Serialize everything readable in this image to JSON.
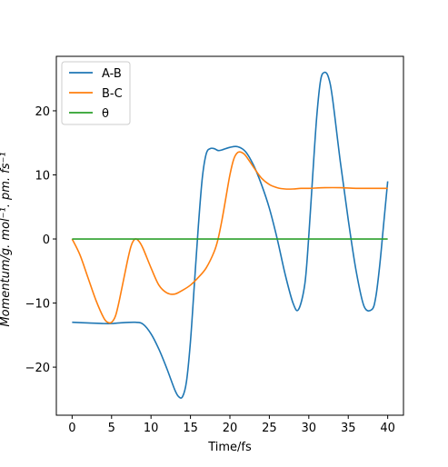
{
  "chart_data": {
    "type": "line",
    "title": "",
    "xlabel": "Time/fs",
    "ylabel": "Momentum/g. mol⁻¹. pm. fs⁻¹",
    "xlim": [
      -2,
      42
    ],
    "ylim": [
      -27.5,
      28.5
    ],
    "xticks": [
      0,
      5,
      10,
      15,
      20,
      25,
      30,
      35,
      40
    ],
    "yticks": [
      -20,
      -10,
      0,
      10,
      20
    ],
    "legend_position": "top-left",
    "grid": false,
    "series": [
      {
        "name": "A-B",
        "color": "#1f77b4",
        "x": [
          0,
          2,
          4,
          5,
          6,
          8,
          9,
          10,
          11,
          12,
          13,
          13.5,
          14,
          14.5,
          15,
          15.5,
          16,
          16.5,
          17,
          17.5,
          18,
          18.5,
          19,
          20,
          21,
          22,
          23,
          24,
          25,
          26,
          27,
          28,
          28.7,
          29.5,
          30,
          30.5,
          31,
          31.5,
          32,
          32.5,
          33,
          34,
          35,
          36,
          37,
          38,
          38.5,
          39,
          39.5,
          40
        ],
        "y": [
          -13,
          -13.1,
          -13.2,
          -13.2,
          -13.1,
          -13.0,
          -13.3,
          -14.8,
          -17.2,
          -20.2,
          -23.5,
          -24.6,
          -24.6,
          -22.2,
          -16.0,
          -7.0,
          2.0,
          9.5,
          13.3,
          14.1,
          14.1,
          13.8,
          13.9,
          14.3,
          14.4,
          13.6,
          11.5,
          8.5,
          4.8,
          0.0,
          -5.5,
          -10.0,
          -11.0,
          -7.0,
          0.5,
          10.0,
          19.0,
          24.8,
          26.0,
          25.2,
          22.0,
          12.0,
          3.0,
          -5.0,
          -10.5,
          -11.0,
          -9.0,
          -4.0,
          2.5,
          9.0
        ]
      },
      {
        "name": "B-C",
        "color": "#ff7f0e",
        "x": [
          0,
          1,
          2,
          3,
          4,
          4.5,
          5,
          5.5,
          6,
          7,
          7.5,
          8,
          8.5,
          9,
          10,
          11,
          12,
          13,
          14,
          15,
          16,
          17,
          18,
          18.5,
          19,
          19.5,
          20,
          20.5,
          21,
          21.5,
          22,
          23,
          24,
          25,
          26,
          27,
          28,
          29,
          30,
          32,
          34,
          36,
          38,
          40
        ],
        "y": [
          0,
          -2.5,
          -6.0,
          -9.5,
          -12.3,
          -13.0,
          -13.0,
          -12.0,
          -9.5,
          -3.5,
          -1.0,
          0.0,
          -0.4,
          -1.5,
          -4.5,
          -7.2,
          -8.4,
          -8.6,
          -8.0,
          -7.2,
          -6.0,
          -4.5,
          -2.0,
          0.0,
          3.0,
          6.5,
          10.0,
          12.5,
          13.5,
          13.5,
          13.0,
          11.2,
          9.5,
          8.5,
          8.0,
          7.8,
          7.8,
          7.9,
          7.9,
          8.0,
          8.0,
          7.9,
          7.9,
          7.9
        ]
      },
      {
        "name": "θ",
        "color": "#2ca02c",
        "x": [
          0,
          40
        ],
        "y": [
          0,
          0
        ]
      }
    ]
  }
}
